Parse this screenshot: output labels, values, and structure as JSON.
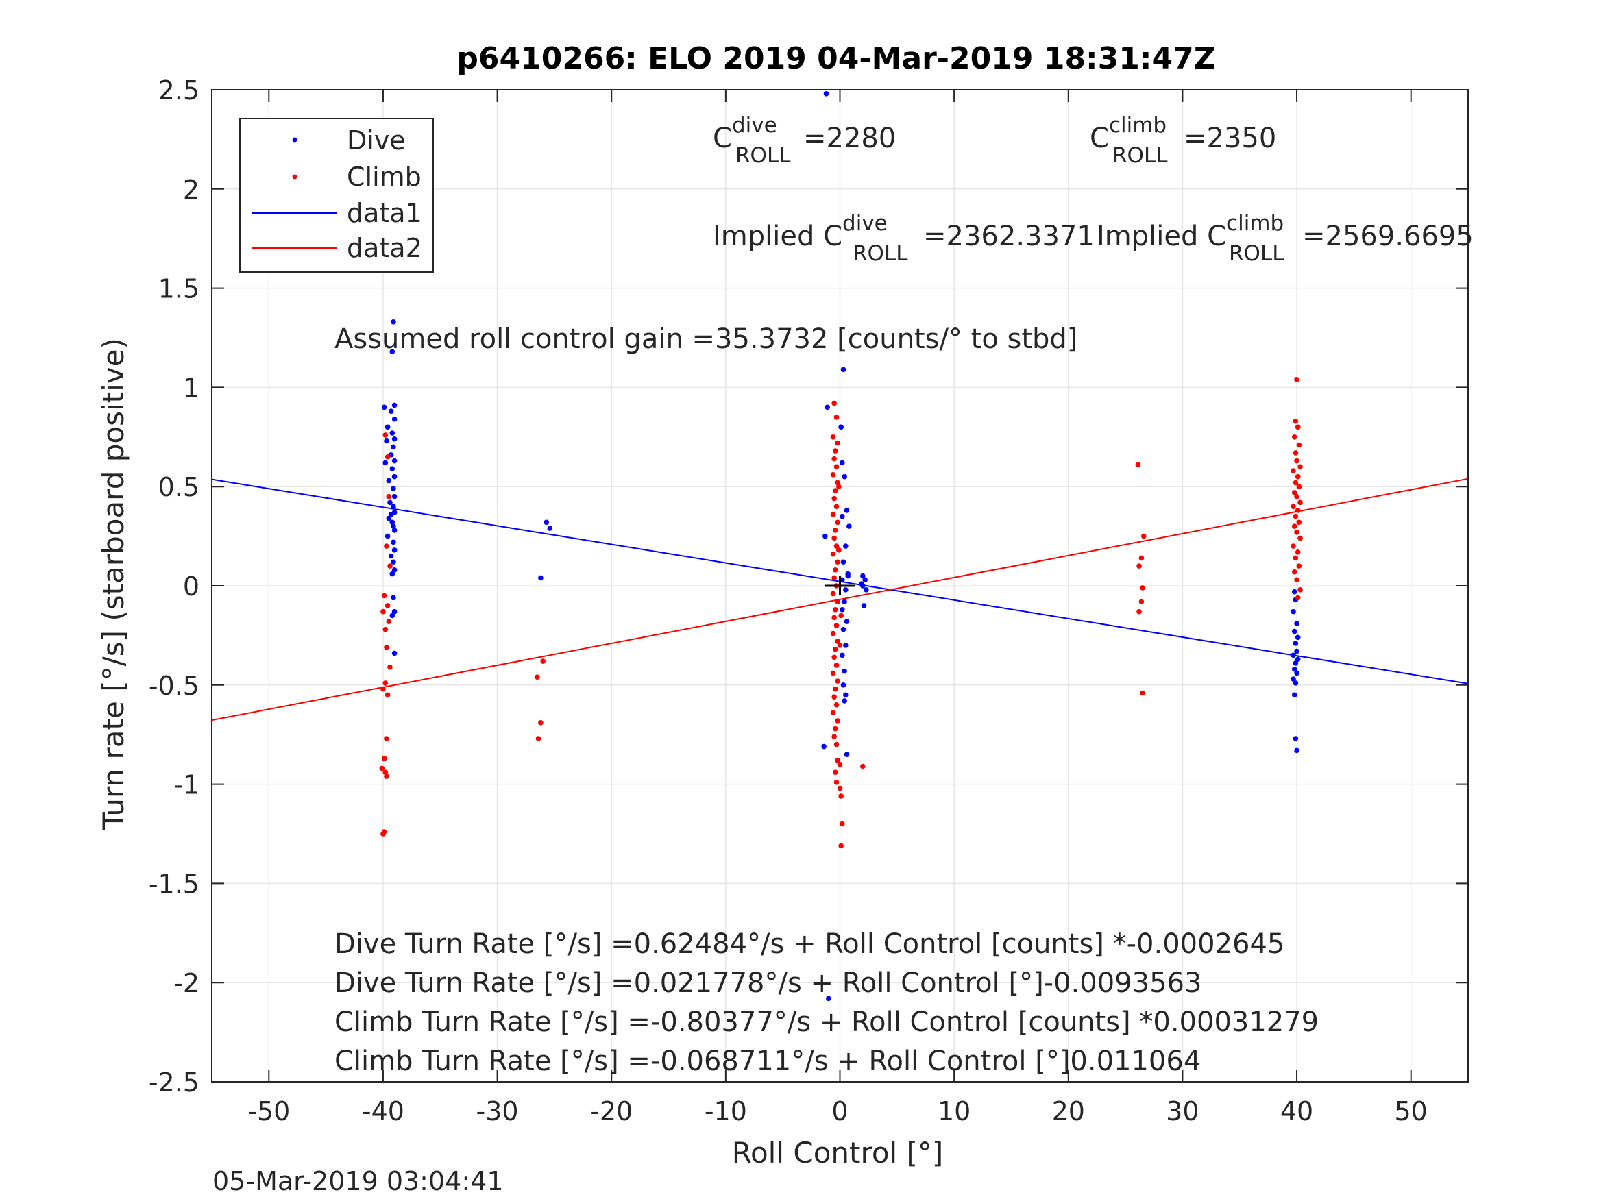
{
  "chart_data": {
    "type": "scatter",
    "title": "p6410266: ELO 2019 04-Mar-2019 18:31:47Z",
    "xlabel": "Roll Control [°]",
    "ylabel": "Turn rate [°/s] (starboard positive)",
    "xlim": [
      -55,
      55
    ],
    "ylim": [
      -2.5,
      2.5
    ],
    "xticks": [
      -50,
      -40,
      -30,
      -20,
      -10,
      0,
      10,
      20,
      30,
      40,
      50
    ],
    "yticks": [
      2.5,
      2,
      1.5,
      1,
      0.5,
      0,
      -0.5,
      -1,
      -1.5,
      -2,
      -2.5
    ],
    "ytick_labels": [
      "2.5",
      "2",
      "1.5",
      "1",
      "0.5",
      "0",
      "-0.5",
      "-1",
      "-1.5",
      "-2",
      "-2.5"
    ],
    "grid": true,
    "legend_position": "top-left",
    "legend": [
      {
        "label": "Dive",
        "kind": "marker",
        "color": "#0000ff"
      },
      {
        "label": "Climb",
        "kind": "marker",
        "color": "#ff0000"
      },
      {
        "label": "data1",
        "kind": "line",
        "color": "#0000ff"
      },
      {
        "label": "data2",
        "kind": "line",
        "color": "#ff0000"
      }
    ],
    "annotations": {
      "c_dive": {
        "base": "C",
        "sup": "dive",
        "sub": "ROLL",
        "value": "=2280"
      },
      "c_climb": {
        "base": "C",
        "sup": "climb",
        "sub": "ROLL",
        "value": "=2350"
      },
      "implied_dive": {
        "prefix": "Implied C",
        "sup": "dive",
        "sub": "ROLL",
        "value": "=2362.3371"
      },
      "implied_climb": {
        "prefix": "Implied C",
        "sup": "climb",
        "sub": "ROLL",
        "value": "=2569.6695"
      },
      "gain": "Assumed roll control gain =35.3732 [counts/° to stbd]",
      "eq1": "Dive Turn Rate [°/s] =0.62484°/s + Roll Control [counts] *-0.0002645",
      "eq2": "Dive Turn Rate [°/s] =0.021778°/s + Roll Control [°]-0.0093563",
      "eq3": "Climb Turn Rate [°/s] =-0.80377°/s + Roll Control [counts] *0.00031279",
      "eq4": "Climb Turn Rate [°/s] =-0.068711°/s + Roll Control [°]0.011064"
    },
    "fit_lines": [
      {
        "name": "data1",
        "color": "#0000ff",
        "intercept": 0.021778,
        "slope": -0.0093563
      },
      {
        "name": "data2",
        "color": "#ff0000",
        "intercept": -0.068711,
        "slope": 0.011064
      }
    ],
    "zero_marker": {
      "x": 0,
      "y": 0,
      "color": "#000000"
    },
    "series": [
      {
        "name": "Dive",
        "color": "#0000ff",
        "points": [
          [
            -39.1,
            1.33
          ],
          [
            -39.2,
            1.18
          ],
          [
            -39.9,
            0.9
          ],
          [
            -39.0,
            0.91
          ],
          [
            -39.3,
            0.88
          ],
          [
            -39.0,
            0.84
          ],
          [
            -39.6,
            0.8
          ],
          [
            -39.2,
            0.77
          ],
          [
            -39.0,
            0.74
          ],
          [
            -39.7,
            0.73
          ],
          [
            -39.1,
            0.7
          ],
          [
            -39.3,
            0.66
          ],
          [
            -39.0,
            0.63
          ],
          [
            -39.8,
            0.62
          ],
          [
            -39.2,
            0.59
          ],
          [
            -39.0,
            0.55
          ],
          [
            -39.5,
            0.53
          ],
          [
            -39.1,
            0.49
          ],
          [
            -39.0,
            0.45
          ],
          [
            -39.4,
            0.42
          ],
          [
            -39.1,
            0.4
          ],
          [
            -39.0,
            0.37
          ],
          [
            -39.5,
            0.34
          ],
          [
            -39.2,
            0.32
          ],
          [
            -39.0,
            0.28
          ],
          [
            -39.6,
            0.25
          ],
          [
            -39.1,
            0.22
          ],
          [
            -39.0,
            0.18
          ],
          [
            -39.3,
            0.15
          ],
          [
            -39.1,
            0.12
          ],
          [
            -39.0,
            0.08
          ],
          [
            -39.2,
            0.06
          ],
          [
            -39.1,
            -0.06
          ],
          [
            -39.0,
            -0.13
          ],
          [
            -39.2,
            -0.15
          ],
          [
            -39.0,
            -0.34
          ],
          [
            -39.3,
            0.36
          ],
          [
            -39.1,
            0.3
          ],
          [
            -25.7,
            0.32
          ],
          [
            -25.4,
            0.29
          ],
          [
            -26.2,
            0.04
          ],
          [
            -1.2,
            2.48
          ],
          [
            -1.0,
            -2.08
          ],
          [
            -1.3,
            0.25
          ],
          [
            -1.1,
            0.9
          ],
          [
            -1.4,
            -0.81
          ],
          [
            0.3,
            1.09
          ],
          [
            0.1,
            0.8
          ],
          [
            0.4,
            0.55
          ],
          [
            0.6,
            0.38
          ],
          [
            0.2,
            0.35
          ],
          [
            0.5,
            0.2
          ],
          [
            0.3,
            0.12
          ],
          [
            0.7,
            0.05
          ],
          [
            0.2,
            0.03
          ],
          [
            0.5,
            -0.02
          ],
          [
            0.4,
            -0.08
          ],
          [
            0.2,
            -0.12
          ],
          [
            0.6,
            -0.18
          ],
          [
            0.3,
            -0.22
          ],
          [
            0.5,
            -0.3
          ],
          [
            0.2,
            -0.35
          ],
          [
            0.4,
            -0.43
          ],
          [
            0.3,
            -0.5
          ],
          [
            0.5,
            -0.55
          ],
          [
            0.4,
            -0.58
          ],
          [
            0.6,
            -0.85
          ],
          [
            0.2,
            0.62
          ],
          [
            0.8,
            0.3
          ],
          [
            0.7,
            0.06
          ],
          [
            2.0,
            0.05
          ],
          [
            2.2,
            0.03
          ],
          [
            2.0,
            0.0
          ],
          [
            2.3,
            -0.02
          ],
          [
            2.1,
            -0.1
          ],
          [
            1.9,
            0.01
          ],
          [
            39.7,
            -0.13
          ],
          [
            39.9,
            -0.07
          ],
          [
            40.0,
            -0.19
          ],
          [
            39.8,
            -0.23
          ],
          [
            40.1,
            -0.26
          ],
          [
            39.9,
            -0.29
          ],
          [
            40.0,
            -0.33
          ],
          [
            39.7,
            -0.35
          ],
          [
            40.1,
            -0.37
          ],
          [
            39.9,
            -0.39
          ],
          [
            39.8,
            -0.42
          ],
          [
            40.0,
            -0.44
          ],
          [
            39.7,
            -0.47
          ],
          [
            39.9,
            -0.49
          ],
          [
            39.8,
            -0.55
          ],
          [
            39.9,
            -0.77
          ],
          [
            40.0,
            -0.83
          ],
          [
            39.8,
            -0.03
          ]
        ]
      },
      {
        "name": "Climb",
        "color": "#ff0000",
        "points": [
          [
            -39.8,
            0.76
          ],
          [
            -39.5,
            0.45
          ],
          [
            -39.7,
            0.2
          ],
          [
            -39.4,
            0.1
          ],
          [
            -39.9,
            -0.05
          ],
          [
            -39.6,
            -0.1
          ],
          [
            -40.0,
            -0.13
          ],
          [
            -39.5,
            -0.18
          ],
          [
            -39.7,
            -0.31
          ],
          [
            -39.4,
            -0.41
          ],
          [
            -39.8,
            -0.49
          ],
          [
            -40.0,
            -0.52
          ],
          [
            -39.6,
            -0.55
          ],
          [
            -39.7,
            -0.77
          ],
          [
            -39.9,
            -0.87
          ],
          [
            -40.1,
            -0.92
          ],
          [
            -39.8,
            -0.94
          ],
          [
            -39.7,
            -0.96
          ],
          [
            -39.9,
            -1.24
          ],
          [
            -40.0,
            -1.25
          ],
          [
            -39.6,
            0.65
          ],
          [
            -39.8,
            -0.22
          ],
          [
            -26.0,
            -0.38
          ],
          [
            -26.5,
            -0.46
          ],
          [
            -26.2,
            -0.69
          ],
          [
            -26.4,
            -0.77
          ],
          [
            -0.5,
            0.92
          ],
          [
            -0.3,
            0.85
          ],
          [
            -0.6,
            0.75
          ],
          [
            -0.2,
            0.72
          ],
          [
            -0.4,
            0.68
          ],
          [
            -0.5,
            0.64
          ],
          [
            -0.3,
            0.6
          ],
          [
            -0.6,
            0.56
          ],
          [
            -0.2,
            0.52
          ],
          [
            -0.4,
            0.48
          ],
          [
            -0.5,
            0.44
          ],
          [
            -0.3,
            0.4
          ],
          [
            -0.6,
            0.36
          ],
          [
            -0.2,
            0.32
          ],
          [
            -0.4,
            0.28
          ],
          [
            -0.5,
            0.24
          ],
          [
            -0.3,
            0.2
          ],
          [
            -0.6,
            0.16
          ],
          [
            -0.2,
            0.12
          ],
          [
            -0.4,
            0.08
          ],
          [
            -0.5,
            0.04
          ],
          [
            -0.3,
            0.0
          ],
          [
            -0.6,
            -0.04
          ],
          [
            -0.2,
            -0.08
          ],
          [
            -0.4,
            -0.12
          ],
          [
            -0.5,
            -0.16
          ],
          [
            -0.3,
            -0.2
          ],
          [
            -0.6,
            -0.24
          ],
          [
            -0.2,
            -0.28
          ],
          [
            -0.4,
            -0.32
          ],
          [
            -0.5,
            -0.36
          ],
          [
            -0.3,
            -0.4
          ],
          [
            -0.6,
            -0.44
          ],
          [
            -0.2,
            -0.48
          ],
          [
            -0.4,
            -0.52
          ],
          [
            -0.5,
            -0.56
          ],
          [
            -0.3,
            -0.6
          ],
          [
            -0.6,
            -0.64
          ],
          [
            -0.2,
            -0.68
          ],
          [
            -0.4,
            -0.72
          ],
          [
            -0.5,
            -0.76
          ],
          [
            -0.3,
            -0.8
          ],
          [
            -0.2,
            -0.88
          ],
          [
            -0.4,
            -0.94
          ],
          [
            -0.3,
            -0.99
          ],
          [
            0.0,
            -1.02
          ],
          [
            0.1,
            -1.06
          ],
          [
            0.2,
            -1.2
          ],
          [
            0.1,
            -1.31
          ],
          [
            0.0,
            -0.9
          ],
          [
            -0.1,
            0.18
          ],
          [
            0.0,
            -0.3
          ],
          [
            -0.1,
            0.5
          ],
          [
            0.1,
            -0.15
          ],
          [
            2.0,
            -0.91
          ],
          [
            26.1,
            0.61
          ],
          [
            26.6,
            0.25
          ],
          [
            26.4,
            0.14
          ],
          [
            26.2,
            0.1
          ],
          [
            26.5,
            -0.01
          ],
          [
            26.4,
            -0.08
          ],
          [
            26.2,
            -0.13
          ],
          [
            26.5,
            -0.54
          ],
          [
            40.0,
            1.04
          ],
          [
            39.9,
            0.83
          ],
          [
            40.1,
            0.8
          ],
          [
            39.8,
            0.75
          ],
          [
            40.2,
            0.71
          ],
          [
            39.9,
            0.67
          ],
          [
            40.0,
            0.63
          ],
          [
            40.3,
            0.6
          ],
          [
            39.7,
            0.58
          ],
          [
            40.1,
            0.55
          ],
          [
            39.9,
            0.52
          ],
          [
            40.2,
            0.5
          ],
          [
            39.8,
            0.47
          ],
          [
            40.0,
            0.45
          ],
          [
            40.3,
            0.42
          ],
          [
            39.7,
            0.4
          ],
          [
            40.1,
            0.38
          ],
          [
            39.9,
            0.35
          ],
          [
            40.2,
            0.32
          ],
          [
            39.8,
            0.3
          ],
          [
            40.0,
            0.27
          ],
          [
            40.3,
            0.24
          ],
          [
            39.7,
            0.2
          ],
          [
            40.1,
            0.17
          ],
          [
            39.9,
            0.14
          ],
          [
            40.2,
            0.1
          ],
          [
            39.8,
            0.07
          ],
          [
            40.0,
            0.03
          ],
          [
            40.3,
            -0.02
          ],
          [
            40.1,
            -0.06
          ]
        ]
      }
    ]
  },
  "footer": {
    "timestamp": "05-Mar-2019 03:04:41"
  },
  "colors": {
    "dive": "#0000ff",
    "climb": "#ff0000",
    "grid": "#e6e6e6",
    "axis": "#262626"
  }
}
